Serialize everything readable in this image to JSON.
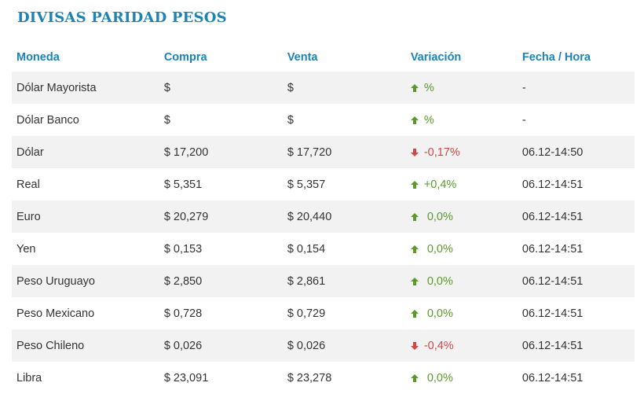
{
  "title": "DIVISAS PARIDAD PESOS",
  "columns": {
    "name": "Moneda",
    "buy": "Compra",
    "sell": "Venta",
    "variation": "Variación",
    "date": "Fecha / Hora"
  },
  "colors": {
    "up": "#5a9a2a",
    "down": "#d04848",
    "accent": "#1d82b4"
  },
  "rows": [
    {
      "name": "Dólar Mayorista",
      "buy": "$",
      "sell": "$",
      "variation": "%",
      "trend": "up",
      "date": "-"
    },
    {
      "name": "Dólar Banco",
      "buy": "$",
      "sell": "$",
      "variation": "%",
      "trend": "up",
      "date": "-"
    },
    {
      "name": "Dólar",
      "buy": "$ 17,200",
      "sell": "$ 17,720",
      "variation": "-0,17%",
      "trend": "down",
      "date": "06.12-14:50"
    },
    {
      "name": "Real",
      "buy": "$ 5,351",
      "sell": "$ 5,357",
      "variation": "+0,4%",
      "trend": "up",
      "date": "06.12-14:51"
    },
    {
      "name": "Euro",
      "buy": "$ 20,279",
      "sell": "$ 20,440",
      "variation": " 0,0%",
      "trend": "up",
      "date": "06.12-14:51"
    },
    {
      "name": "Yen",
      "buy": "$ 0,153",
      "sell": "$ 0,154",
      "variation": " 0,0%",
      "trend": "up",
      "date": "06.12-14:51"
    },
    {
      "name": "Peso Uruguayo",
      "buy": "$ 2,850",
      "sell": "$ 2,861",
      "variation": " 0,0%",
      "trend": "up",
      "date": "06.12-14:51"
    },
    {
      "name": "Peso Mexicano",
      "buy": "$ 0,728",
      "sell": "$ 0,729",
      "variation": " 0,0%",
      "trend": "up",
      "date": "06.12-14:51"
    },
    {
      "name": "Peso Chileno",
      "buy": "$ 0,026",
      "sell": "$ 0,026",
      "variation": "-0,4%",
      "trend": "down",
      "date": "06.12-14:51"
    },
    {
      "name": "Libra",
      "buy": "$ 23,091",
      "sell": "$ 23,278",
      "variation": " 0,0%",
      "trend": "up",
      "date": "06.12-14:51"
    }
  ]
}
